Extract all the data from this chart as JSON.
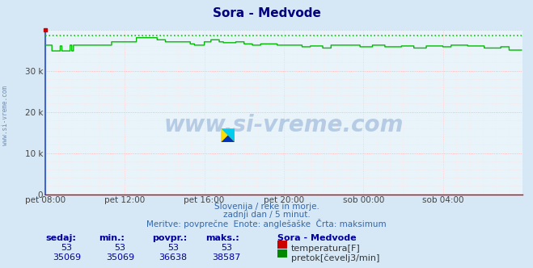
{
  "title": "Sora - Medvode",
  "title_color": "#000080",
  "background_color": "#d6e8f5",
  "plot_bg_color": "#e8f4fa",
  "grid_color_major_h": "#ffaaaa",
  "grid_color_minor_h": "#ffe0e0",
  "grid_color_major_v": "#ffcccc",
  "grid_color_minor_v": "#ffe8e8",
  "left_border_color": "#4466cc",
  "x_labels": [
    "pet 08:00",
    "pet 12:00",
    "pet 16:00",
    "pet 20:00",
    "sob 00:00",
    "sob 04:00"
  ],
  "x_ticks_pos": [
    0,
    96,
    192,
    288,
    384,
    480
  ],
  "x_max": 576,
  "y_min": 0,
  "y_max": 40000,
  "y_ticks": [
    0,
    10000,
    20000,
    30000
  ],
  "y_tick_labels": [
    "0",
    "10 k",
    "20 k",
    "30 k"
  ],
  "axis_color": "#cc0000",
  "flow_color": "#00bb00",
  "flow_dashed_color": "#00cc00",
  "temp_color": "#cc0000",
  "watermark": "www.si-vreme.com",
  "watermark_color": "#2255aa",
  "watermark_alpha": 0.25,
  "side_text": "www.si-vreme.com",
  "subtitle1": "Slovenija / reke in morje.",
  "subtitle2": "zadnji dan / 5 minut.",
  "subtitle3": "Meritve: povprečne  Enote: anglešaške  Črta: maksimum",
  "subtitle_color": "#3366aa",
  "table_header": [
    "sedaj:",
    "min.:",
    "povpr.:",
    "maks.:"
  ],
  "table_header_color": "#000099",
  "table_row1_vals": [
    "53",
    "53",
    "53",
    "53"
  ],
  "table_row2_vals": [
    "35069",
    "35069",
    "36638",
    "38587"
  ],
  "table_label": "Sora - Medvode",
  "table_label_color": "#000099",
  "legend_temp": "temperatura[F]",
  "legend_flow": "pretok[čevelj3/min]",
  "legend_color": "#333333",
  "flow_max_line": 38587,
  "flow_n": 576,
  "flow_segments": [
    {
      "start": 0,
      "end": 8,
      "val": 36200
    },
    {
      "start": 8,
      "end": 18,
      "val": 34800
    },
    {
      "start": 18,
      "end": 20,
      "val": 36000
    },
    {
      "start": 20,
      "end": 30,
      "val": 34800
    },
    {
      "start": 30,
      "end": 32,
      "val": 36200
    },
    {
      "start": 32,
      "end": 34,
      "val": 34800
    },
    {
      "start": 34,
      "end": 38,
      "val": 36200
    },
    {
      "start": 38,
      "end": 55,
      "val": 36200
    },
    {
      "start": 55,
      "end": 80,
      "val": 36200
    },
    {
      "start": 80,
      "end": 110,
      "val": 37000
    },
    {
      "start": 110,
      "end": 135,
      "val": 38000
    },
    {
      "start": 135,
      "end": 145,
      "val": 37500
    },
    {
      "start": 145,
      "end": 175,
      "val": 37000
    },
    {
      "start": 175,
      "end": 180,
      "val": 36500
    },
    {
      "start": 180,
      "end": 192,
      "val": 36200
    },
    {
      "start": 192,
      "end": 200,
      "val": 37000
    },
    {
      "start": 200,
      "end": 210,
      "val": 37500
    },
    {
      "start": 210,
      "end": 215,
      "val": 37000
    },
    {
      "start": 215,
      "end": 230,
      "val": 36800
    },
    {
      "start": 230,
      "end": 240,
      "val": 37000
    },
    {
      "start": 240,
      "end": 250,
      "val": 36500
    },
    {
      "start": 250,
      "end": 260,
      "val": 36200
    },
    {
      "start": 260,
      "end": 280,
      "val": 36500
    },
    {
      "start": 280,
      "end": 290,
      "val": 36200
    },
    {
      "start": 290,
      "end": 310,
      "val": 36200
    },
    {
      "start": 310,
      "end": 320,
      "val": 35800
    },
    {
      "start": 320,
      "end": 335,
      "val": 36000
    },
    {
      "start": 335,
      "end": 345,
      "val": 35500
    },
    {
      "start": 345,
      "end": 380,
      "val": 36200
    },
    {
      "start": 380,
      "end": 395,
      "val": 35800
    },
    {
      "start": 395,
      "end": 410,
      "val": 36200
    },
    {
      "start": 410,
      "end": 430,
      "val": 35800
    },
    {
      "start": 430,
      "end": 445,
      "val": 36000
    },
    {
      "start": 445,
      "end": 460,
      "val": 35500
    },
    {
      "start": 460,
      "end": 480,
      "val": 36000
    },
    {
      "start": 480,
      "end": 490,
      "val": 35800
    },
    {
      "start": 490,
      "end": 510,
      "val": 36200
    },
    {
      "start": 510,
      "end": 530,
      "val": 36000
    },
    {
      "start": 530,
      "end": 550,
      "val": 35500
    },
    {
      "start": 550,
      "end": 560,
      "val": 35800
    },
    {
      "start": 560,
      "end": 576,
      "val": 35000
    }
  ]
}
